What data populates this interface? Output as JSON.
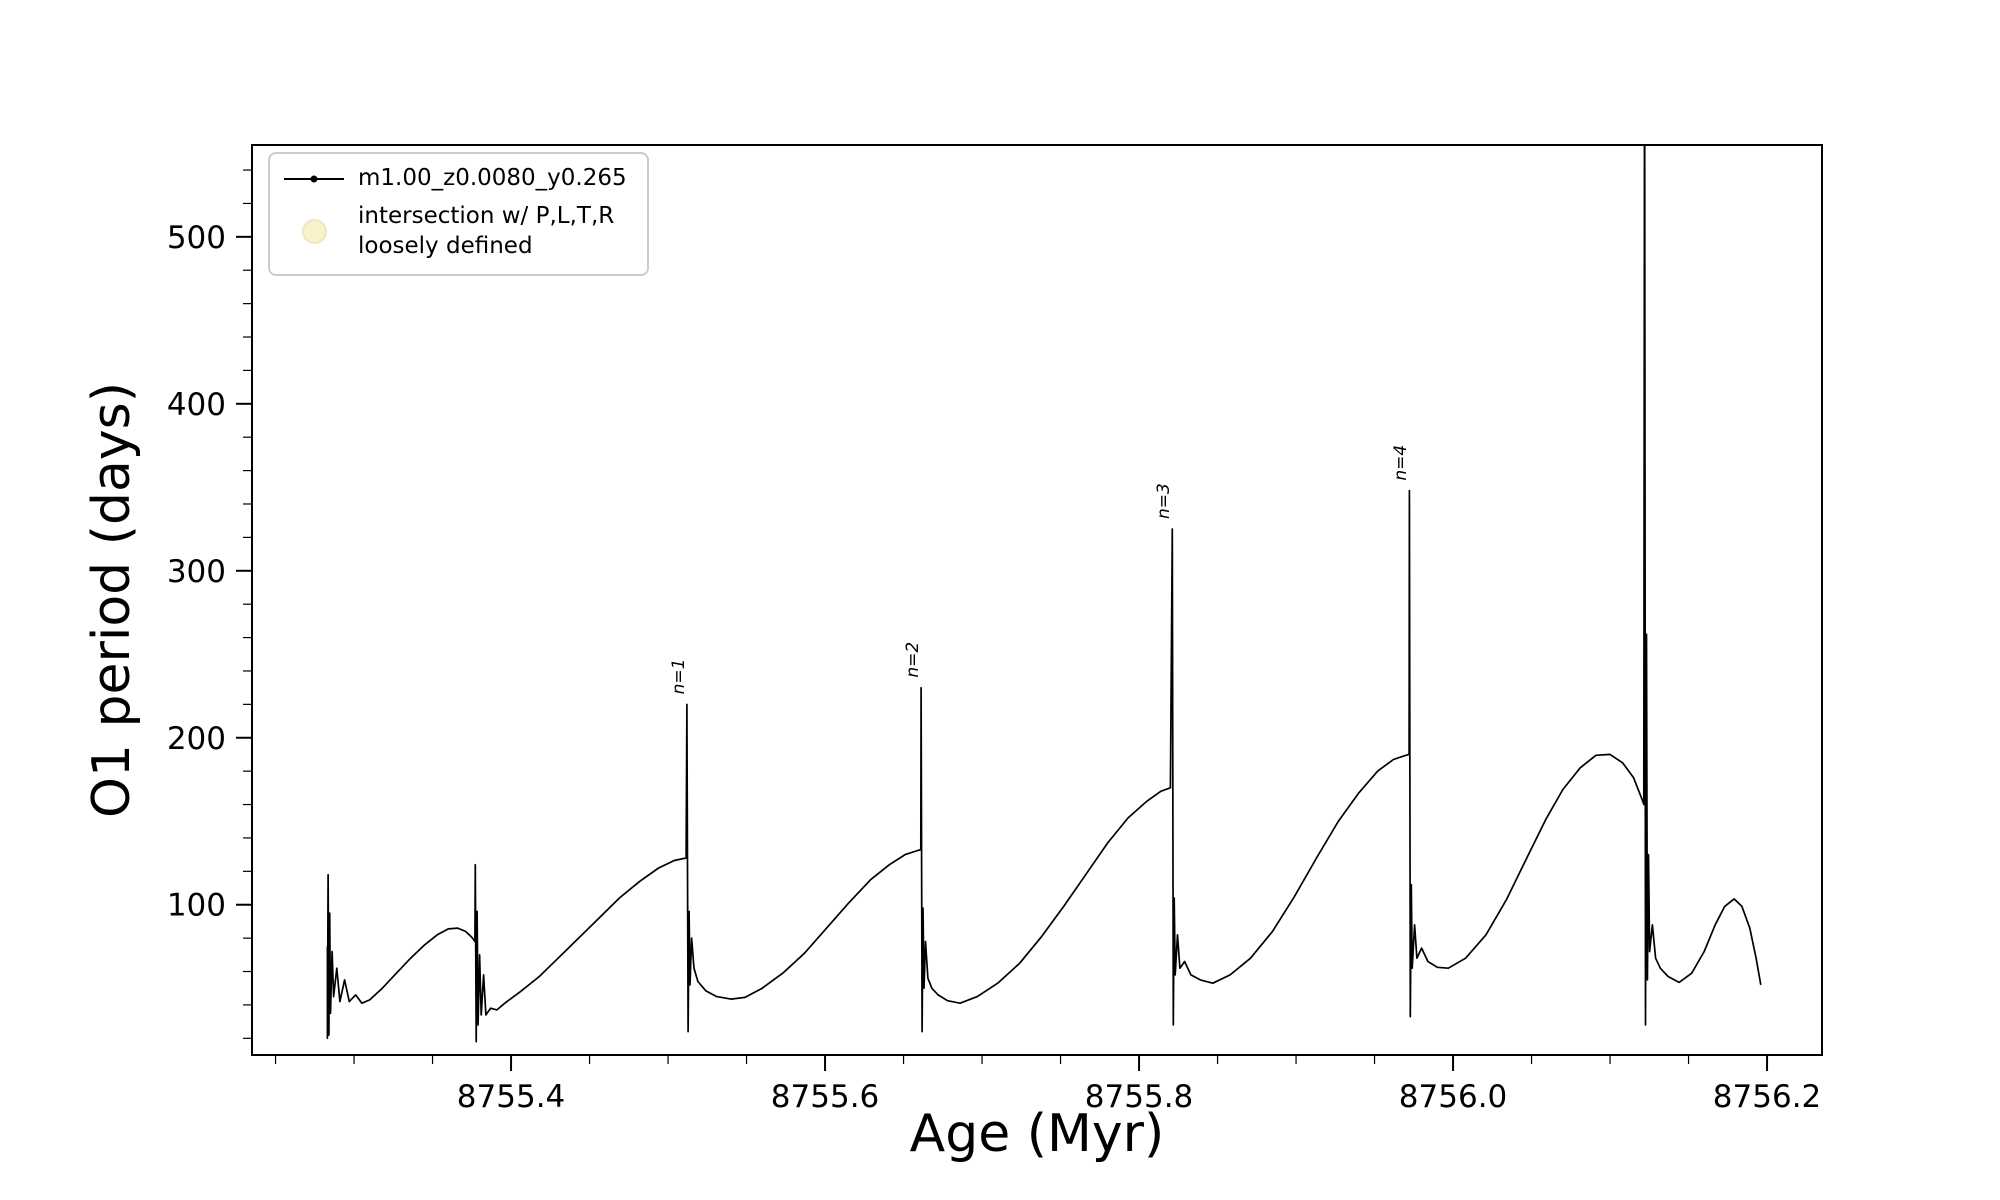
{
  "figure": {
    "background": "#ffffff",
    "axes_color": "#000000",
    "tick_color": "#000000"
  },
  "chart_data": {
    "type": "line",
    "title": "",
    "xlabel": "Age (Myr)",
    "ylabel": "O1 period (days)",
    "xlim": [
      8755.235,
      8756.235
    ],
    "ylim": [
      10,
      555
    ],
    "grid": false,
    "legend_position": "upper left",
    "x_ticks": {
      "major": [
        8755.4,
        8755.6,
        8755.8,
        8756.0,
        8756.2
      ],
      "labels": [
        "8755.4",
        "8755.6",
        "8755.8",
        "8756.0",
        "8756.2"
      ],
      "minor_step": 0.05
    },
    "y_ticks": {
      "major": [
        100,
        200,
        300,
        400,
        500
      ],
      "labels": [
        "100",
        "200",
        "300",
        "400",
        "500"
      ],
      "minor_step": 20
    },
    "legend": {
      "entries": [
        {
          "type": "line-marker",
          "color": "#000000",
          "label": "m1.00_z0.0080_y0.265"
        },
        {
          "type": "circle",
          "fill": "#f0e68c",
          "stroke": "#d8cc70",
          "fill_opacity": 0.45,
          "label": "intersection w/ P,L,T,R\nloosely defined"
        }
      ]
    },
    "annotations": [
      {
        "text": "n=1",
        "x": 8755.512,
        "y": 226
      },
      {
        "text": "n=2",
        "x": 8755.661,
        "y": 236
      },
      {
        "text": "n=3",
        "x": 8755.821,
        "y": 331
      },
      {
        "text": "n=4",
        "x": 8755.972,
        "y": 354
      }
    ],
    "series": [
      {
        "name": "m1.00_z0.0080_y0.265",
        "color": "#000000",
        "marker": "point",
        "points": [
          [
            8755.283,
            75
          ],
          [
            8755.283,
            20
          ],
          [
            8755.2835,
            118
          ],
          [
            8755.284,
            22
          ],
          [
            8755.2845,
            95
          ],
          [
            8755.285,
            35
          ],
          [
            8755.286,
            72
          ],
          [
            8755.287,
            45
          ],
          [
            8755.289,
            62
          ],
          [
            8755.291,
            42
          ],
          [
            8755.294,
            55
          ],
          [
            8755.297,
            42
          ],
          [
            8755.301,
            46
          ],
          [
            8755.305,
            41
          ],
          [
            8755.31,
            43
          ],
          [
            8755.318,
            50
          ],
          [
            8755.327,
            59
          ],
          [
            8755.336,
            68
          ],
          [
            8755.345,
            76
          ],
          [
            8755.353,
            82
          ],
          [
            8755.36,
            85.5
          ],
          [
            8755.366,
            86
          ],
          [
            8755.371,
            84
          ],
          [
            8755.375,
            80.5
          ],
          [
            8755.377,
            78
          ],
          [
            8755.3772,
            124
          ],
          [
            8755.3778,
            18
          ],
          [
            8755.3784,
            96
          ],
          [
            8755.379,
            28
          ],
          [
            8755.38,
            70
          ],
          [
            8755.381,
            34
          ],
          [
            8755.3825,
            58
          ],
          [
            8755.384,
            34
          ],
          [
            8755.387,
            38
          ],
          [
            8755.391,
            37
          ],
          [
            8755.396,
            41
          ],
          [
            8755.406,
            48
          ],
          [
            8755.418,
            57
          ],
          [
            8755.43,
            68
          ],
          [
            8755.443,
            80
          ],
          [
            8755.456,
            92
          ],
          [
            8755.469,
            104
          ],
          [
            8755.482,
            114
          ],
          [
            8755.494,
            122
          ],
          [
            8755.504,
            126.5
          ],
          [
            8755.5115,
            128
          ],
          [
            8755.512,
            220
          ],
          [
            8755.5128,
            24
          ],
          [
            8755.5134,
            96
          ],
          [
            8755.514,
            52
          ],
          [
            8755.515,
            80
          ],
          [
            8755.5165,
            62
          ],
          [
            8755.519,
            54
          ],
          [
            8755.524,
            48.5
          ],
          [
            8755.531,
            45
          ],
          [
            8755.54,
            43.5
          ],
          [
            8755.549,
            44.5
          ],
          [
            8755.56,
            50
          ],
          [
            8755.573,
            59
          ],
          [
            8755.587,
            71
          ],
          [
            8755.601,
            86
          ],
          [
            8755.615,
            101
          ],
          [
            8755.629,
            115
          ],
          [
            8755.641,
            124
          ],
          [
            8755.651,
            130
          ],
          [
            8755.659,
            132.5
          ],
          [
            8755.661,
            133
          ],
          [
            8755.6612,
            230
          ],
          [
            8755.6618,
            24
          ],
          [
            8755.6624,
            98
          ],
          [
            8755.663,
            50
          ],
          [
            8755.664,
            78
          ],
          [
            8755.6655,
            56
          ],
          [
            8755.668,
            50
          ],
          [
            8755.672,
            46
          ],
          [
            8755.678,
            42.5
          ],
          [
            8755.686,
            41
          ],
          [
            8755.697,
            45
          ],
          [
            8755.71,
            53
          ],
          [
            8755.724,
            65
          ],
          [
            8755.738,
            81
          ],
          [
            8755.752,
            99
          ],
          [
            8755.766,
            118
          ],
          [
            8755.78,
            137
          ],
          [
            8755.793,
            152
          ],
          [
            8755.805,
            162
          ],
          [
            8755.814,
            168
          ],
          [
            8755.82,
            170
          ],
          [
            8755.8212,
            325
          ],
          [
            8755.8218,
            28
          ],
          [
            8755.8224,
            104
          ],
          [
            8755.823,
            58
          ],
          [
            8755.8245,
            82
          ],
          [
            8755.826,
            62
          ],
          [
            8755.829,
            66
          ],
          [
            8755.833,
            58
          ],
          [
            8755.839,
            55
          ],
          [
            8755.847,
            53
          ],
          [
            8755.858,
            58
          ],
          [
            8755.871,
            68
          ],
          [
            8755.885,
            84
          ],
          [
            8755.899,
            105
          ],
          [
            8755.913,
            128
          ],
          [
            8755.927,
            150
          ],
          [
            8755.94,
            167
          ],
          [
            8755.952,
            180
          ],
          [
            8755.962,
            187
          ],
          [
            8755.97,
            189.5
          ],
          [
            8755.972,
            190
          ],
          [
            8755.9722,
            348
          ],
          [
            8755.9728,
            33
          ],
          [
            8755.9734,
            112
          ],
          [
            8755.974,
            62
          ],
          [
            8755.9755,
            88
          ],
          [
            8755.977,
            68
          ],
          [
            8755.98,
            74
          ],
          [
            8755.984,
            66
          ],
          [
            8755.99,
            62.5
          ],
          [
            8755.997,
            62
          ],
          [
            8756.008,
            68
          ],
          [
            8756.021,
            82
          ],
          [
            8756.034,
            103
          ],
          [
            8756.047,
            128
          ],
          [
            8756.059,
            151
          ],
          [
            8756.07,
            169
          ],
          [
            8756.081,
            182
          ],
          [
            8756.091,
            189.5
          ],
          [
            8756.1,
            190
          ],
          [
            8756.108,
            185
          ],
          [
            8756.115,
            176
          ],
          [
            8756.12,
            164
          ],
          [
            8756.1215,
            160
          ],
          [
            8756.122,
            640
          ],
          [
            8756.1226,
            28
          ],
          [
            8756.1232,
            262
          ],
          [
            8756.1238,
            55
          ],
          [
            8756.1245,
            130
          ],
          [
            8756.1252,
            72
          ],
          [
            8756.127,
            88
          ],
          [
            8756.129,
            68
          ],
          [
            8756.132,
            62
          ],
          [
            8756.137,
            57
          ],
          [
            8756.144,
            53.5
          ],
          [
            8756.152,
            59
          ],
          [
            8756.16,
            72
          ],
          [
            8756.167,
            88
          ],
          [
            8756.173,
            99
          ],
          [
            8756.179,
            103.5
          ],
          [
            8756.184,
            99
          ],
          [
            8756.189,
            86
          ],
          [
            8756.193,
            68
          ],
          [
            8756.196,
            52
          ]
        ]
      }
    ]
  }
}
